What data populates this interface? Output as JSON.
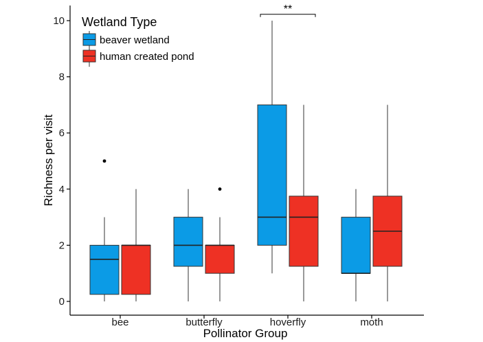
{
  "chart_data": {
    "type": "box",
    "xlabel": "Pollinator Group",
    "ylabel": "Richness per visit",
    "categories": [
      "bee",
      "butterfly",
      "hoverfly",
      "moth"
    ],
    "ylim": [
      0,
      10.4
    ],
    "yticks": [
      0,
      2,
      4,
      6,
      8,
      10
    ],
    "grid": false,
    "legend": {
      "title": "Wetland Type",
      "position": "top-left"
    },
    "series": [
      {
        "name": "beaver wetland",
        "color": "#0b9be6",
        "boxes": [
          {
            "category": "bee",
            "min": 0,
            "q1": 0.25,
            "median": 1.5,
            "q3": 2,
            "max": 3,
            "outliers": [
              5
            ]
          },
          {
            "category": "butterfly",
            "min": 0,
            "q1": 1.25,
            "median": 2,
            "q3": 3,
            "max": 4,
            "outliers": []
          },
          {
            "category": "hoverfly",
            "min": 1,
            "q1": 2,
            "median": 3,
            "q3": 7,
            "max": 10,
            "outliers": []
          },
          {
            "category": "moth",
            "min": 0,
            "q1": 1,
            "median": 1,
            "q3": 3,
            "max": 4,
            "outliers": []
          }
        ]
      },
      {
        "name": "human created pond",
        "color": "#ee3124",
        "boxes": [
          {
            "category": "bee",
            "min": 0,
            "q1": 0.25,
            "median": 2,
            "q3": 2,
            "max": 4,
            "outliers": []
          },
          {
            "category": "butterfly",
            "min": 0,
            "q1": 1,
            "median": 2,
            "q3": 2,
            "max": 3,
            "outliers": [
              4
            ]
          },
          {
            "category": "hoverfly",
            "min": 0,
            "q1": 1.25,
            "median": 3,
            "q3": 3.75,
            "max": 7,
            "outliers": []
          },
          {
            "category": "moth",
            "min": 0,
            "q1": 1.25,
            "median": 2.5,
            "q3": 3.75,
            "max": 7,
            "outliers": []
          }
        ]
      }
    ],
    "annotations": [
      {
        "text": "**",
        "category": "hoverfly",
        "y": 10.3
      }
    ]
  }
}
